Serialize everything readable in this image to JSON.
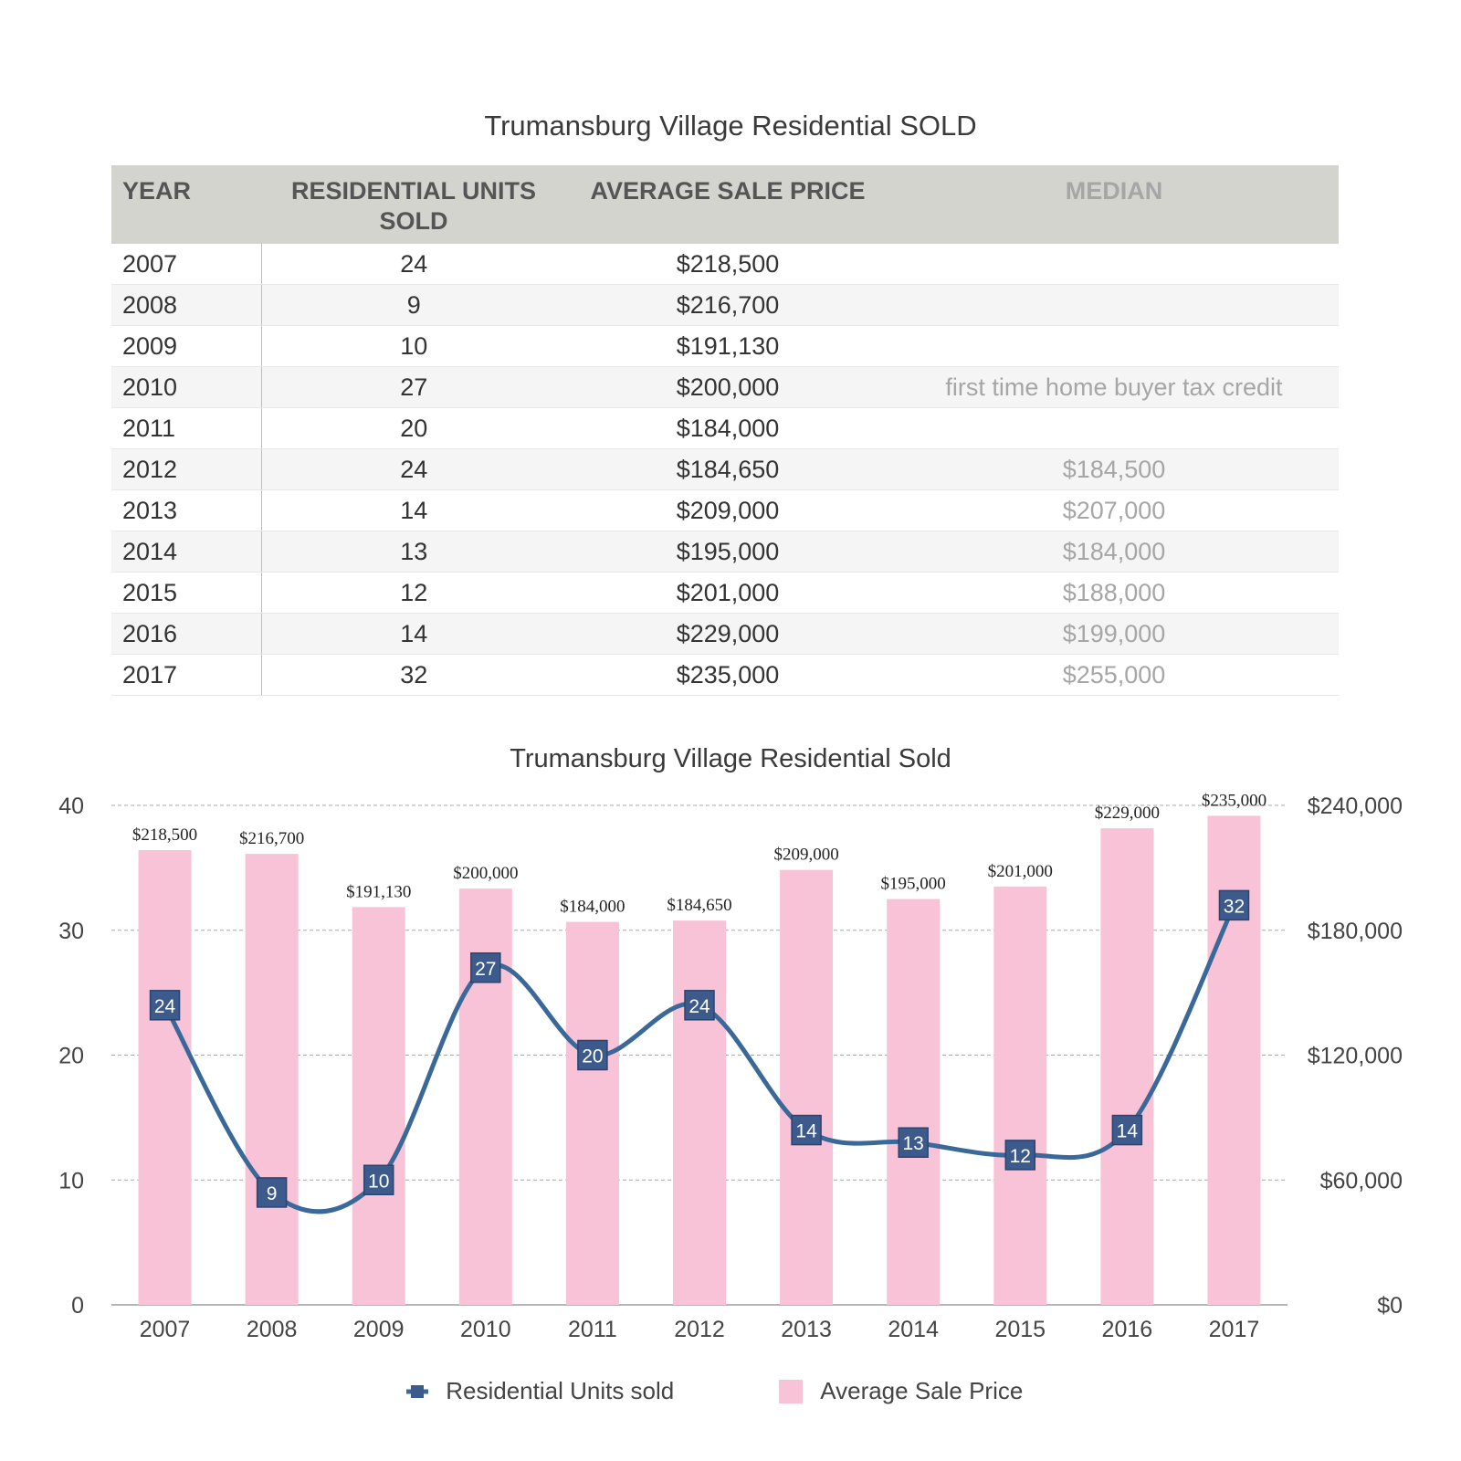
{
  "table": {
    "title": "Trumansburg Village Residential SOLD",
    "headers": [
      "YEAR",
      "RESIDENTIAL UNITS SOLD",
      "AVERAGE SALE PRICE",
      "MEDIAN"
    ],
    "rows": [
      [
        "2007",
        "24",
        "$218,500",
        ""
      ],
      [
        "2008",
        "9",
        "$216,700",
        ""
      ],
      [
        "2009",
        "10",
        "$191,130",
        ""
      ],
      [
        "2010",
        "27",
        "$200,000",
        "first time home buyer tax credit"
      ],
      [
        "2011",
        "20",
        "$184,000",
        ""
      ],
      [
        "2012",
        "24",
        "$184,650",
        "$184,500"
      ],
      [
        "2013",
        "14",
        "$209,000",
        "$207,000"
      ],
      [
        "2014",
        "13",
        "$195,000",
        "$184,000"
      ],
      [
        "2015",
        "12",
        "$201,000",
        "$188,000"
      ],
      [
        "2016",
        "14",
        "$229,000",
        "$199,000"
      ],
      [
        "2017",
        "32",
        "$235,000",
        "$255,000"
      ]
    ]
  },
  "chart_data": {
    "type": "bar",
    "title": "Trumansburg Village Residential Sold",
    "categories": [
      "2007",
      "2008",
      "2009",
      "2010",
      "2011",
      "2012",
      "2013",
      "2014",
      "2015",
      "2016",
      "2017"
    ],
    "series": [
      {
        "name": "Residential Units sold",
        "type": "line",
        "axis": "left",
        "values": [
          24,
          9,
          10,
          27,
          20,
          24,
          14,
          13,
          12,
          14,
          32
        ]
      },
      {
        "name": "Average Sale Price",
        "type": "bar",
        "axis": "right",
        "values": [
          218500,
          216700,
          191130,
          200000,
          184000,
          184650,
          209000,
          195000,
          201000,
          229000,
          235000
        ],
        "labels": [
          "$218,500",
          "$216,700",
          "$191,130",
          "$200,000",
          "$184,000",
          "$184,650",
          "$209,000",
          "$195,000",
          "$201,000",
          "$229,000",
          "$235,000"
        ]
      }
    ],
    "y_left": {
      "ylim": [
        0,
        40
      ],
      "ticks": [
        "0",
        "10",
        "20",
        "30",
        "40"
      ]
    },
    "y_right": {
      "ylim": [
        0,
        240000
      ],
      "ticks": [
        "$0",
        "$60,000",
        "$120,000",
        "$180,000",
        "$240,000"
      ]
    },
    "grid": true,
    "legend": "bottom",
    "colors": {
      "bar": "#f8c3d6",
      "line": "#3a6899",
      "marker": "#3c5a8c",
      "grid": "#a8a8a8"
    }
  }
}
